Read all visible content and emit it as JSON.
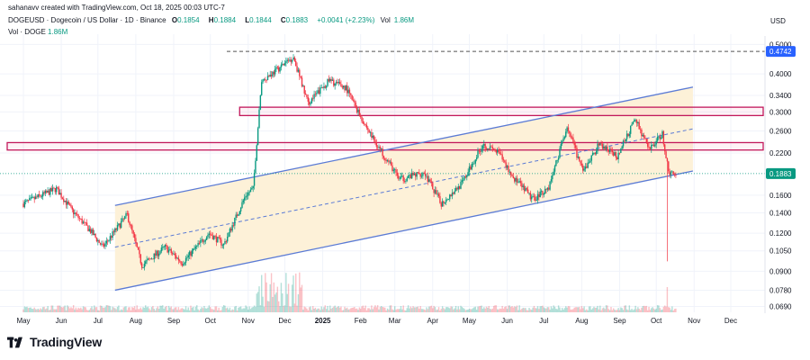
{
  "header": {
    "credit": "sahanavv created with TradingView.com, Oct 18, 2025 00:03 UTC-7",
    "symbol": "DOGEUSD · Dogecoin / US Dollar · 1D · Binance",
    "open_label": "O",
    "open": "0.1854",
    "high_label": "H",
    "high": "0.1884",
    "low_label": "L",
    "low": "0.1844",
    "close_label": "C",
    "close": "0.1883",
    "change": "+0.0041 (+2.23%)",
    "vol_label": "Vol",
    "vol_value": "1.86M",
    "vol_series_label": "Vol · DOGE",
    "vol_series_value": "1.86M"
  },
  "brand": {
    "name": "TradingView"
  },
  "colors": {
    "up": "#089981",
    "down": "#f23645",
    "channel": "#5b7bd5",
    "channel_fill": "#fdf1d8",
    "zone": "#c2185b",
    "price_tag": "#2962ff",
    "grid": "#f0f3fa",
    "text": "#131722"
  },
  "chart_data": {
    "type": "candlestick",
    "currency_label": "USD",
    "y_scale": "log",
    "ylim": [
      0.066,
      0.54
    ],
    "y_ticks": [
      "0.5000",
      "0.4000",
      "0.3400",
      "0.3000",
      "0.2600",
      "0.2200",
      "0.1883",
      "0.1600",
      "0.1400",
      "0.1200",
      "0.1050",
      "0.0900",
      "0.0780",
      "0.0690"
    ],
    "x_ticks": [
      "May",
      "Jun",
      "Jul",
      "Aug",
      "Sep",
      "Oct",
      "Nov",
      "Dec",
      "2025",
      "Feb",
      "Mar",
      "Apr",
      "May",
      "Jun",
      "Jul",
      "Aug",
      "Sep",
      "Oct",
      "Nov",
      "Dec"
    ],
    "x_ticks_bold": [
      "2025"
    ],
    "last_price": "0.1883",
    "peak_price_tag": "0.4742",
    "peak_level": 0.4742,
    "horizontal_zones": [
      {
        "low": 0.292,
        "high": 0.311
      },
      {
        "low": 0.225,
        "high": 0.238
      }
    ],
    "channel": {
      "lower": [
        [
          "2024-07-15",
          0.078
        ],
        [
          "2025-10-31",
          0.192
        ]
      ],
      "upper": [
        [
          "2024-07-15",
          0.148
        ],
        [
          "2025-10-31",
          0.362
        ]
      ],
      "mid": [
        [
          "2024-07-15",
          0.108
        ],
        [
          "2025-10-31",
          0.264
        ]
      ]
    },
    "monthly_closes": [
      [
        "2024-05",
        0.16
      ],
      [
        "2024-06",
        0.125
      ],
      [
        "2024-07",
        0.128
      ],
      [
        "2024-08",
        0.101
      ],
      [
        "2024-09",
        0.105
      ],
      [
        "2024-10",
        0.16
      ],
      [
        "2024-11",
        0.38
      ],
      [
        "2024-12",
        0.31
      ],
      [
        "2025-01",
        0.33
      ],
      [
        "2025-02",
        0.2
      ],
      [
        "2025-03",
        0.17
      ],
      [
        "2025-04",
        0.16
      ],
      [
        "2025-05",
        0.19
      ],
      [
        "2025-06",
        0.16
      ],
      [
        "2025-07",
        0.2
      ],
      [
        "2025-08",
        0.21
      ],
      [
        "2025-09",
        0.23
      ],
      [
        "2025-10",
        0.1883
      ]
    ],
    "extremes": {
      "high": 0.4742,
      "low_wick": "2025-10-10",
      "low_wick_value": 0.097
    }
  }
}
